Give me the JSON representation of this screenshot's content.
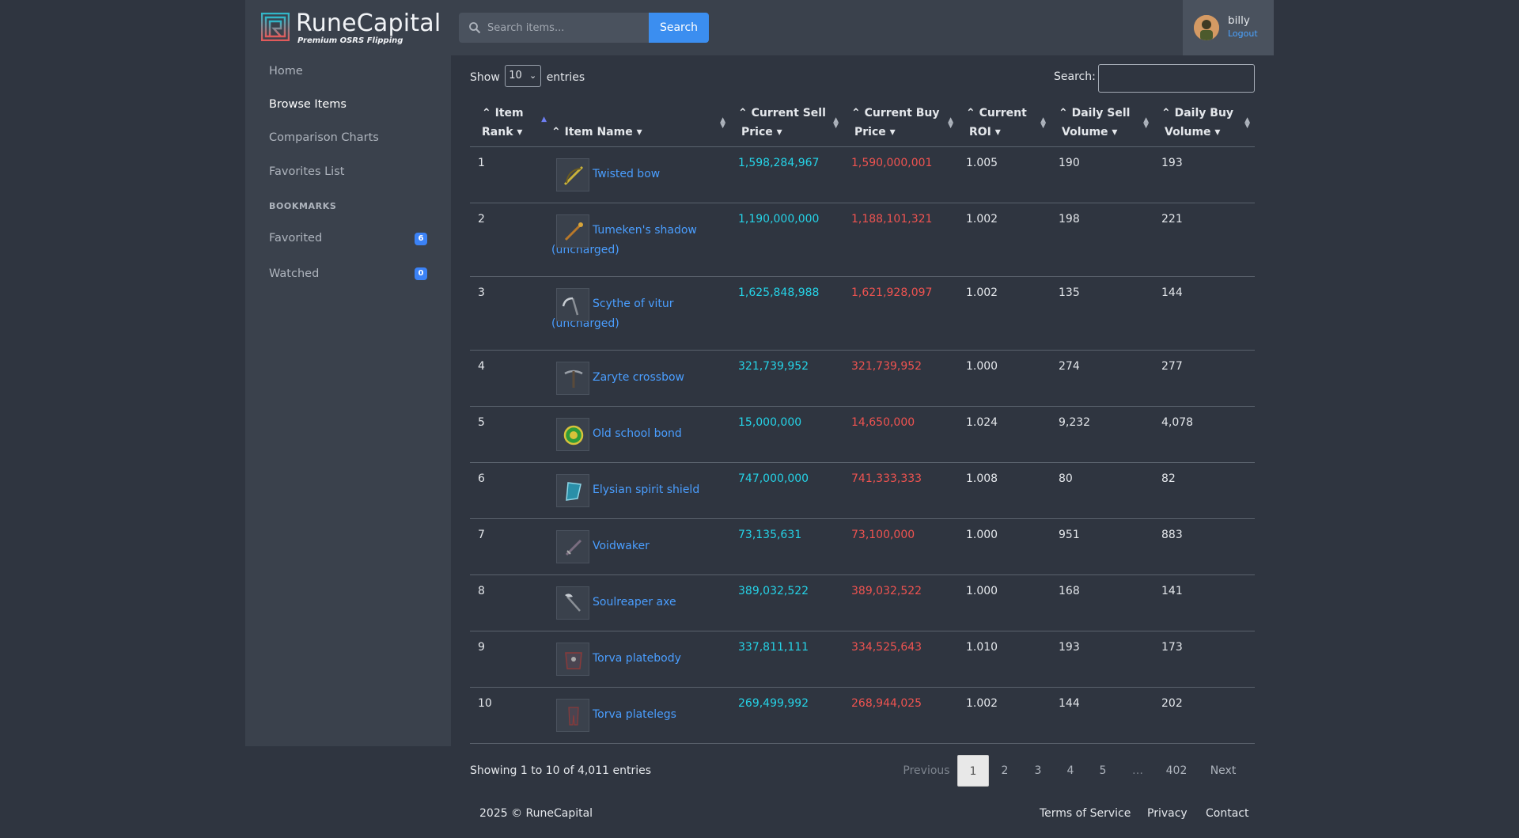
{
  "brand": {
    "name": "RuneCapital",
    "tagline": "Premium OSRS Flipping"
  },
  "sidebar": {
    "items": [
      {
        "label": "Home"
      },
      {
        "label": "Browse Items"
      },
      {
        "label": "Comparison Charts"
      },
      {
        "label": "Favorites List"
      }
    ],
    "heading": "BOOKMARKS",
    "bookmarks": [
      {
        "label": "Favorited",
        "count": "6"
      },
      {
        "label": "Watched",
        "count": "0"
      }
    ]
  },
  "topbar": {
    "search_placeholder": "Search items...",
    "search_button": "Search",
    "user": {
      "name": "billy",
      "logout": "Logout"
    }
  },
  "table_controls": {
    "show_label": "Show",
    "entries_value": "10",
    "entries_label": "entries",
    "filter_label": "Search:"
  },
  "table": {
    "columns": [
      {
        "line1": "Item",
        "line2": "Rank"
      },
      {
        "line1": "",
        "line2": "Item Name"
      },
      {
        "line1": "Current Sell",
        "line2": "Price"
      },
      {
        "line1": "Current Buy",
        "line2": "Price"
      },
      {
        "line1": "Current",
        "line2": "ROI"
      },
      {
        "line1": "Daily Sell",
        "line2": "Volume"
      },
      {
        "line1": "Daily Buy",
        "line2": "Volume"
      }
    ],
    "rows": [
      {
        "rank": "1",
        "name1": "Twisted bow",
        "name2": "",
        "sell": "1,598,284,967",
        "buy": "1,590,000,001",
        "roi": "1.005",
        "sell_vol": "190",
        "buy_vol": "193"
      },
      {
        "rank": "2",
        "name1": "Tumeken's shadow",
        "name2": "(uncharged)",
        "sell": "1,190,000,000",
        "buy": "1,188,101,321",
        "roi": "1.002",
        "sell_vol": "198",
        "buy_vol": "221"
      },
      {
        "rank": "3",
        "name1": "Scythe of vitur",
        "name2": "(uncharged)",
        "sell": "1,625,848,988",
        "buy": "1,621,928,097",
        "roi": "1.002",
        "sell_vol": "135",
        "buy_vol": "144"
      },
      {
        "rank": "4",
        "name1": "Zaryte crossbow",
        "name2": "",
        "sell": "321,739,952",
        "buy": "321,739,952",
        "roi": "1.000",
        "sell_vol": "274",
        "buy_vol": "277"
      },
      {
        "rank": "5",
        "name1": "Old school bond",
        "name2": "",
        "sell": "15,000,000",
        "buy": "14,650,000",
        "roi": "1.024",
        "sell_vol": "9,232",
        "buy_vol": "4,078"
      },
      {
        "rank": "6",
        "name1": "Elysian spirit shield",
        "name2": "",
        "sell": "747,000,000",
        "buy": "741,333,333",
        "roi": "1.008",
        "sell_vol": "80",
        "buy_vol": "82"
      },
      {
        "rank": "7",
        "name1": "Voidwaker",
        "name2": "",
        "sell": "73,135,631",
        "buy": "73,100,000",
        "roi": "1.000",
        "sell_vol": "951",
        "buy_vol": "883"
      },
      {
        "rank": "8",
        "name1": "Soulreaper axe",
        "name2": "",
        "sell": "389,032,522",
        "buy": "389,032,522",
        "roi": "1.000",
        "sell_vol": "168",
        "buy_vol": "141"
      },
      {
        "rank": "9",
        "name1": "Torva platebody",
        "name2": "",
        "sell": "337,811,111",
        "buy": "334,525,643",
        "roi": "1.010",
        "sell_vol": "193",
        "buy_vol": "173"
      },
      {
        "rank": "10",
        "name1": "Torva platelegs",
        "name2": "",
        "sell": "269,499,992",
        "buy": "268,944,025",
        "roi": "1.002",
        "sell_vol": "144",
        "buy_vol": "202"
      }
    ]
  },
  "pagination": {
    "info": "Showing 1 to 10 of 4,011 entries",
    "previous": "Previous",
    "pages": [
      "1",
      "2",
      "3",
      "4",
      "5"
    ],
    "ellipsis": "…",
    "last": "402",
    "next": "Next"
  },
  "footer": {
    "copyright": "2025 © RuneCapital",
    "links": [
      "Terms of Service",
      "Privacy",
      "Contact"
    ]
  },
  "colors": {
    "accent": "#3b8ef0",
    "sell": "#25d3e7",
    "buy": "#ef5350",
    "link": "#4a9eff"
  }
}
